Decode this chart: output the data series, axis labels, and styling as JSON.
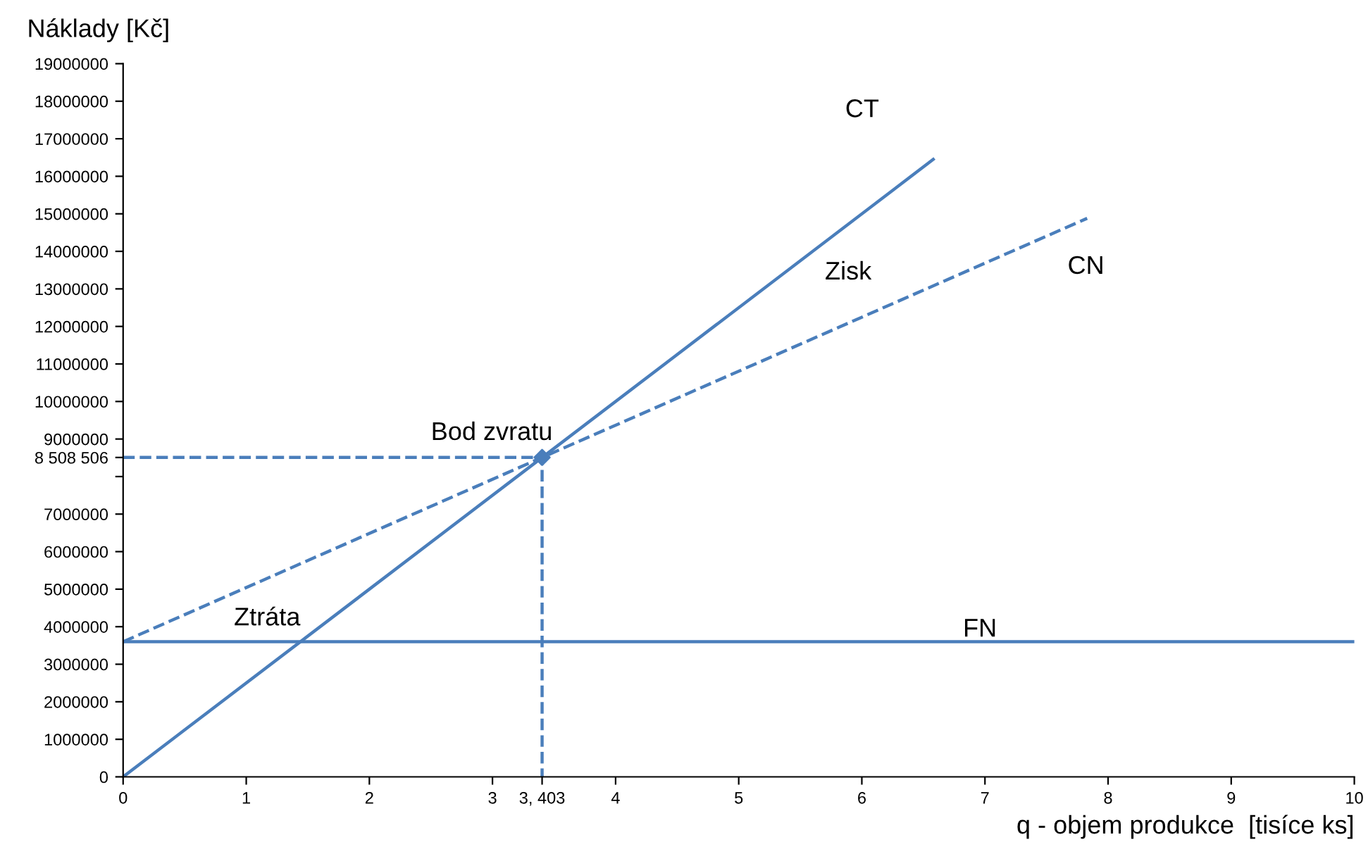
{
  "chart_data": {
    "type": "line",
    "xlabel": "q - objem produkce  [tisíce ks]",
    "ylabel": "Náklady [Kč]",
    "xlim": [
      0,
      10
    ],
    "ylim": [
      0,
      19000000
    ],
    "xticks": [
      0,
      1,
      2,
      3,
      {
        "value": 3.403,
        "label": "3, 403"
      },
      4,
      5,
      6,
      7,
      8,
      9,
      10
    ],
    "yticks": [
      0,
      1000000,
      2000000,
      3000000,
      4000000,
      5000000,
      6000000,
      7000000,
      {
        "value": 8000000,
        "label": null
      },
      {
        "value": 8508506,
        "label": "8 508 506"
      },
      9000000,
      10000000,
      11000000,
      12000000,
      13000000,
      14000000,
      15000000,
      16000000,
      17000000,
      18000000,
      19000000
    ],
    "grid": false,
    "legend": false,
    "marker": "none",
    "series": [
      {
        "name": "CT",
        "color": "#4a7ebb",
        "line_style": "solid",
        "x": [
          0,
          6.58
        ],
        "values": [
          0,
          16450000
        ]
      },
      {
        "name": "CN",
        "color": "#4a7ebb",
        "line_style": "dashed",
        "x": [
          0,
          3.403,
          7.83
        ],
        "values": [
          3600000,
          8508506,
          14880000
        ]
      },
      {
        "name": "FN",
        "color": "#4a7ebb",
        "line_style": "solid",
        "x": [
          0,
          10
        ],
        "values": [
          3600000,
          3600000
        ]
      },
      {
        "color": "#4a7ebb",
        "line_style": "dashed",
        "x": [
          0,
          3.403,
          3.403
        ],
        "values": [
          8508506,
          8508506,
          0
        ]
      },
      {
        "type": "scatter",
        "color": "#4a7ebb",
        "marker": "diamond",
        "x": [
          3.403
        ],
        "values": [
          8508506
        ]
      }
    ],
    "annotations": [
      "Zisk",
      "Bod zvratu",
      "Ztráta"
    ]
  }
}
